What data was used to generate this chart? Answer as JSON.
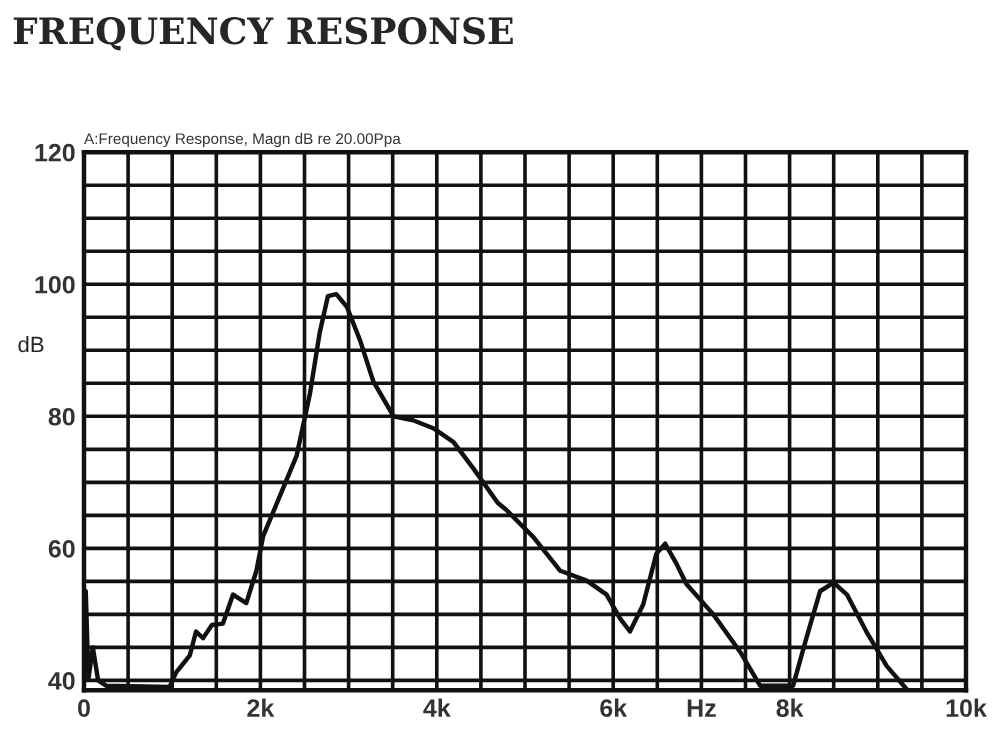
{
  "chart_data": {
    "type": "line",
    "title": "FREQUENCY RESPONSE",
    "subtitle": "A:Frequency Response, Magn dB re 20.00Ppa",
    "ylabel": "dB",
    "series": [
      {
        "color": "#111111",
        "x": [
          20,
          50,
          100,
          160,
          250,
          970,
          1045,
          1200,
          1270,
          1350,
          1450,
          1575,
          1690,
          1840,
          1955,
          2030,
          2220,
          2410,
          2560,
          2670,
          2765,
          2860,
          2980,
          3130,
          3280,
          3510,
          3730,
          3960,
          4190,
          4420,
          4690,
          4790,
          5095,
          5400,
          5700,
          5925,
          6077,
          6190,
          6340,
          6490,
          6590,
          6720,
          6830,
          7135,
          7440,
          7665,
          8040,
          8190,
          8345,
          8500,
          8650,
          8870,
          9100,
          9325
        ],
        "values": [
          53.5,
          40.2,
          45,
          40,
          39.2,
          39,
          41.2,
          43.8,
          47.4,
          46.4,
          48.4,
          48.6,
          53,
          51.7,
          56.6,
          61.8,
          67.9,
          74,
          83.3,
          92.5,
          98.2,
          98.5,
          96.6,
          91.5,
          85.3,
          80,
          79.4,
          78.2,
          76.1,
          72,
          66.9,
          65.8,
          61.7,
          56.6,
          55.1,
          53,
          49.4,
          47.4,
          51.5,
          59.2,
          60.7,
          57.6,
          54.6,
          50,
          44.3,
          39.2,
          39.2,
          46.4,
          53.5,
          54.8,
          53,
          47.4,
          42.2,
          38.7
        ]
      }
    ],
    "xlim": [
      0,
      10000
    ],
    "ylim": [
      38.5,
      120
    ],
    "xticks": [
      0,
      {
        "value": 500,
        "label": null
      },
      {
        "value": 1000,
        "label": null
      },
      {
        "value": 1500,
        "label": null
      },
      {
        "value": 2000,
        "label": "2k"
      },
      {
        "value": 2500,
        "label": null
      },
      {
        "value": 3000,
        "label": null
      },
      {
        "value": 3500,
        "label": null
      },
      {
        "value": 4000,
        "label": "4k"
      },
      {
        "value": 4500,
        "label": null
      },
      {
        "value": 5000,
        "label": null
      },
      {
        "value": 5500,
        "label": null
      },
      {
        "value": 6000,
        "label": "6k"
      },
      {
        "value": 6500,
        "label": null
      },
      {
        "value": 7000,
        "label": "Hz"
      },
      {
        "value": 7500,
        "label": null
      },
      {
        "value": 8000,
        "label": "8k"
      },
      {
        "value": 8500,
        "label": null
      },
      {
        "value": 9000,
        "label": null
      },
      {
        "value": 9500,
        "label": null
      },
      {
        "value": 10000,
        "label": "10k"
      }
    ],
    "yticks": [
      40,
      {
        "value": 45,
        "label": null
      },
      {
        "value": 50,
        "label": null
      },
      {
        "value": 55,
        "label": null
      },
      60,
      {
        "value": 65,
        "label": null
      },
      {
        "value": 70,
        "label": null
      },
      {
        "value": 75,
        "label": null
      },
      80,
      {
        "value": 85,
        "label": null
      },
      {
        "value": 90,
        "label": null
      },
      {
        "value": 95,
        "label": null
      },
      100,
      {
        "value": 105,
        "label": null
      },
      {
        "value": 110,
        "label": null
      },
      {
        "value": 115,
        "label": null
      },
      120
    ],
    "grid": true,
    "legend": false
  }
}
